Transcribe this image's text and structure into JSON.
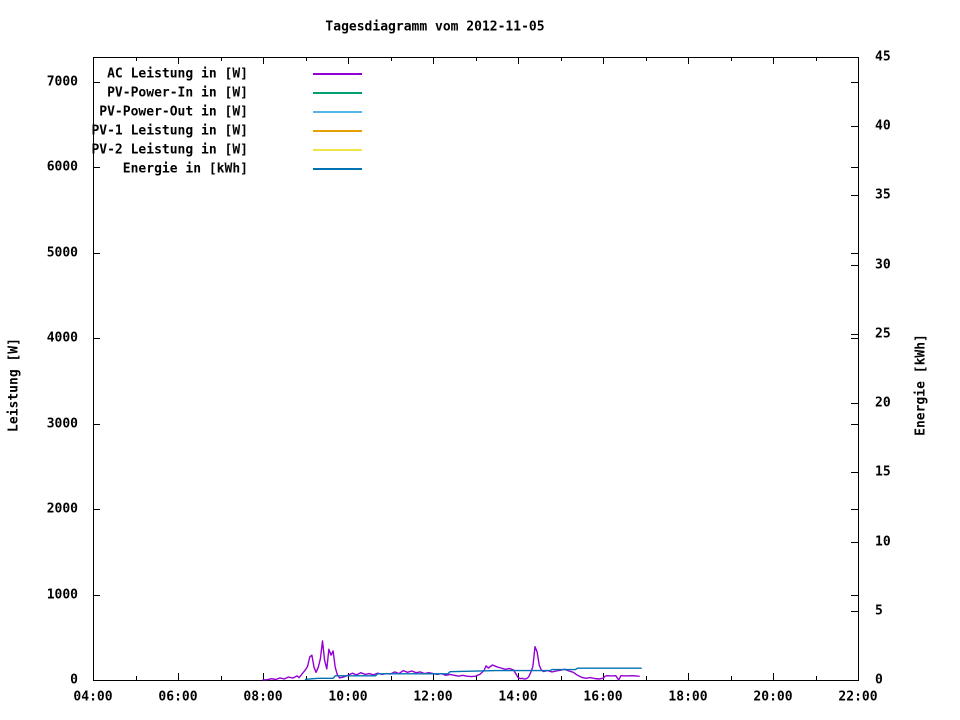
{
  "page": {
    "background_color": "#ffffff",
    "foreground_color": "#000000"
  },
  "chart_data": {
    "type": "line",
    "title": "Tagesdiagramm vom 2012-11-05",
    "grid": false,
    "legend_position": "top-left-inside",
    "x_axis": {
      "unit": "time",
      "range_hours": [
        4,
        22
      ],
      "major_tick_hours": [
        4,
        6,
        8,
        10,
        12,
        14,
        16,
        18,
        20,
        22
      ],
      "major_tick_labels": [
        "04:00",
        "06:00",
        "08:00",
        "10:00",
        "12:00",
        "14:00",
        "16:00",
        "18:00",
        "20:00",
        "22:00"
      ],
      "minor_tick_hours": [
        5,
        7,
        9,
        11,
        13,
        15,
        17,
        19,
        21
      ]
    },
    "y_left": {
      "label": "Leistung [W]",
      "range": [
        0,
        7292
      ],
      "tick_values": [
        0,
        1000,
        2000,
        3000,
        4000,
        5000,
        6000,
        7000
      ],
      "tick_labels": [
        "0",
        "1000",
        "2000",
        "3000",
        "4000",
        "5000",
        "6000",
        "7000"
      ]
    },
    "y_right": {
      "label": "Energie [kWh]",
      "range": [
        0,
        45
      ],
      "tick_values": [
        0,
        5,
        10,
        15,
        20,
        25,
        30,
        35,
        40,
        45
      ],
      "tick_labels": [
        "0",
        "5",
        "10",
        "15",
        "20",
        "25",
        "30",
        "35",
        "40",
        "45"
      ]
    },
    "series": [
      {
        "name": "AC Leistung in [W]",
        "color": "#9400D3",
        "axis": "left",
        "points": [
          [
            8.0,
            2
          ],
          [
            8.1,
            4
          ],
          [
            8.2,
            15
          ],
          [
            8.3,
            6
          ],
          [
            8.4,
            25
          ],
          [
            8.5,
            12
          ],
          [
            8.6,
            35
          ],
          [
            8.7,
            22
          ],
          [
            8.8,
            48
          ],
          [
            8.85,
            28
          ],
          [
            8.9,
            60
          ],
          [
            9.0,
            120
          ],
          [
            9.05,
            160
          ],
          [
            9.1,
            270
          ],
          [
            9.15,
            290
          ],
          [
            9.2,
            150
          ],
          [
            9.25,
            90
          ],
          [
            9.3,
            150
          ],
          [
            9.35,
            250
          ],
          [
            9.4,
            456
          ],
          [
            9.45,
            230
          ],
          [
            9.5,
            130
          ],
          [
            9.55,
            360
          ],
          [
            9.6,
            290
          ],
          [
            9.65,
            340
          ],
          [
            9.7,
            150
          ],
          [
            9.75,
            60
          ],
          [
            9.8,
            25
          ],
          [
            9.9,
            35
          ],
          [
            10.0,
            55
          ],
          [
            10.1,
            80
          ],
          [
            10.2,
            60
          ],
          [
            10.3,
            85
          ],
          [
            10.4,
            65
          ],
          [
            10.5,
            75
          ],
          [
            10.6,
            60
          ],
          [
            10.7,
            80
          ],
          [
            10.8,
            65
          ],
          [
            10.9,
            75
          ],
          [
            11.0,
            70
          ],
          [
            11.1,
            95
          ],
          [
            11.2,
            75
          ],
          [
            11.3,
            110
          ],
          [
            11.4,
            90
          ],
          [
            11.5,
            105
          ],
          [
            11.6,
            85
          ],
          [
            11.7,
            95
          ],
          [
            11.8,
            75
          ],
          [
            11.9,
            85
          ],
          [
            12.0,
            75
          ],
          [
            12.1,
            65
          ],
          [
            12.2,
            75
          ],
          [
            12.3,
            55
          ],
          [
            12.4,
            65
          ],
          [
            12.5,
            55
          ],
          [
            12.6,
            45
          ],
          [
            12.7,
            55
          ],
          [
            12.8,
            45
          ],
          [
            12.9,
            40
          ],
          [
            13.0,
            45
          ],
          [
            13.1,
            65
          ],
          [
            13.2,
            110
          ],
          [
            13.25,
            165
          ],
          [
            13.3,
            140
          ],
          [
            13.4,
            175
          ],
          [
            13.5,
            155
          ],
          [
            13.6,
            140
          ],
          [
            13.7,
            125
          ],
          [
            13.8,
            135
          ],
          [
            13.9,
            115
          ],
          [
            13.95,
            70
          ],
          [
            14.0,
            30
          ],
          [
            14.05,
            15
          ],
          [
            14.1,
            20
          ],
          [
            14.15,
            10
          ],
          [
            14.2,
            15
          ],
          [
            14.25,
            35
          ],
          [
            14.3,
            90
          ],
          [
            14.35,
            160
          ],
          [
            14.4,
            390
          ],
          [
            14.45,
            330
          ],
          [
            14.5,
            170
          ],
          [
            14.55,
            115
          ],
          [
            14.6,
            100
          ],
          [
            14.7,
            110
          ],
          [
            14.8,
            95
          ],
          [
            14.9,
            105
          ],
          [
            15.0,
            115
          ],
          [
            15.1,
            125
          ],
          [
            15.2,
            105
          ],
          [
            15.3,
            90
          ],
          [
            15.4,
            55
          ],
          [
            15.5,
            30
          ],
          [
            15.6,
            20
          ],
          [
            15.7,
            28
          ],
          [
            15.8,
            18
          ],
          [
            15.9,
            12
          ],
          [
            16.0,
            20
          ],
          [
            16.05,
            45
          ],
          [
            16.1,
            50
          ],
          [
            16.2,
            48
          ],
          [
            16.3,
            50
          ],
          [
            16.37,
            0
          ],
          [
            16.42,
            50
          ],
          [
            16.55,
            48
          ],
          [
            16.7,
            50
          ],
          [
            16.8,
            46
          ],
          [
            16.85,
            45
          ]
        ]
      },
      {
        "name": "PV-Power-In in [W]",
        "color": "#009E73",
        "axis": "left",
        "points": []
      },
      {
        "name": "PV-Power-Out in [W]",
        "color": "#56B4E9",
        "axis": "left",
        "points": []
      },
      {
        "name": "PV-1 Leistung in [W]",
        "color": "#E69F00",
        "axis": "left",
        "points": []
      },
      {
        "name": "PV-2 Leistung in [W]",
        "color": "#F0E442",
        "axis": "left",
        "points": []
      },
      {
        "name": "Energie in [kWh]",
        "color": "#0072B2",
        "axis": "right",
        "points": [
          [
            9.0,
            0.05
          ],
          [
            9.3,
            0.12
          ],
          [
            9.65,
            0.12
          ],
          [
            9.7,
            0.3
          ],
          [
            10.65,
            0.3
          ],
          [
            10.7,
            0.45
          ],
          [
            12.35,
            0.45
          ],
          [
            12.4,
            0.6
          ],
          [
            13.5,
            0.68
          ],
          [
            14.75,
            0.68
          ],
          [
            14.8,
            0.75
          ],
          [
            15.35,
            0.75
          ],
          [
            15.4,
            0.85
          ],
          [
            16.9,
            0.85
          ]
        ]
      }
    ]
  }
}
